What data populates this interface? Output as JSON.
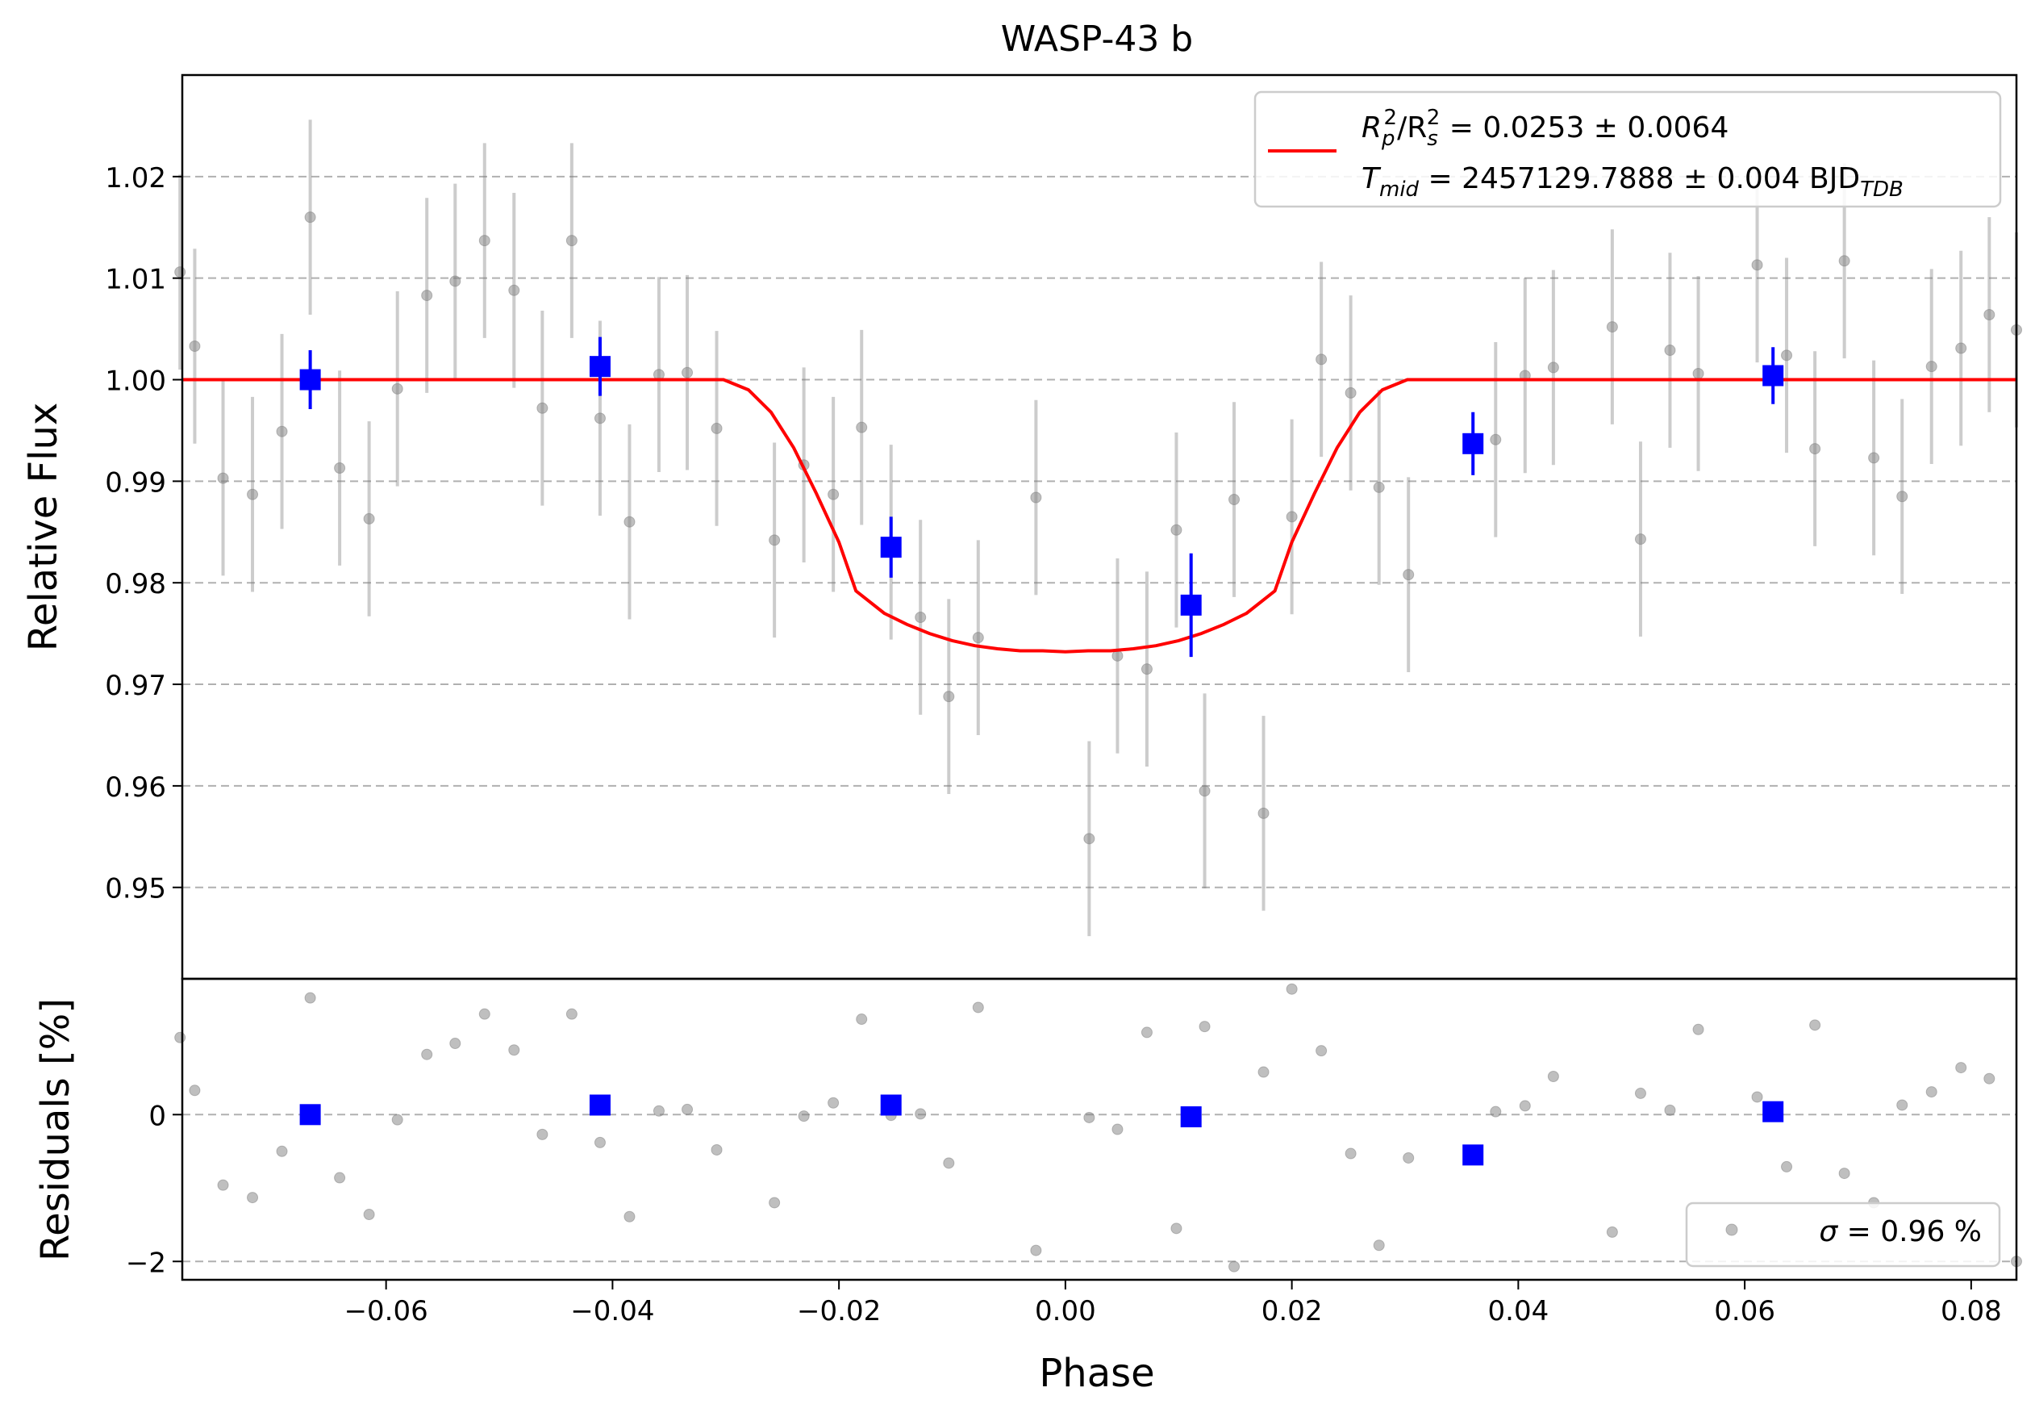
{
  "chart_data": [
    {
      "type": "scatter",
      "panel": "main",
      "title": "WASP-43 b",
      "xlabel": "",
      "ylabel": "Relative Flux",
      "xlim": [
        -0.078,
        0.084
      ],
      "ylim": [
        0.941,
        1.03
      ],
      "grid": "horizontal-dashed",
      "legend_placement": "top-right",
      "yticks": [
        0.95,
        0.96,
        0.97,
        0.98,
        0.99,
        1.0,
        1.01,
        1.02
      ],
      "ytick_labels": [
        "0.95",
        "0.96",
        "0.97",
        "0.98",
        "0.99",
        "1.00",
        "1.01",
        "1.02"
      ],
      "legend": {
        "line1_main": "R",
        "line1_sub1": "p",
        "line1_sup1": "2",
        "line1_slash": "/R",
        "line1_sub2": "s",
        "line1_sup2": "2",
        "line1_rest": " = 0.0253 ± 0.0064",
        "line2_main": "T",
        "line2_sub": "mid",
        "line2_rest": " = 2457129.7888 ± 0.004 BJD",
        "line2_unit_sub": "TDB"
      },
      "series": [
        {
          "name": "data",
          "style": "grey-dots-errorbars",
          "color": "#808080",
          "err": 0.0096,
          "x": [
            -0.0782,
            -0.0769,
            -0.0744,
            -0.0718,
            -0.0692,
            -0.0667,
            -0.0641,
            -0.0615,
            -0.059,
            -0.0564,
            -0.0539,
            -0.0513,
            -0.0487,
            -0.0462,
            -0.0436,
            -0.0411,
            -0.0385,
            -0.0359,
            -0.0334,
            -0.0308,
            -0.0257,
            -0.0231,
            -0.0205,
            -0.018,
            -0.0154,
            -0.0128,
            -0.0103,
            -0.0077,
            -0.0026,
            0.0021,
            0.0046,
            0.0072,
            0.0098,
            0.0123,
            0.0149,
            0.0175,
            0.02,
            0.0226,
            0.0252,
            0.0277,
            0.0303,
            0.038,
            0.0406,
            0.0431,
            0.0483,
            0.0508,
            0.0534,
            0.0559,
            0.0611,
            0.0637,
            0.0662,
            0.0688,
            0.0714,
            0.0739,
            0.0765,
            0.0791,
            0.0816,
            0.084
          ],
          "y": [
            1.0106,
            1.0033,
            0.9903,
            0.9887,
            0.9949,
            1.016,
            0.9913,
            0.9863,
            0.9991,
            1.0083,
            1.0097,
            1.0137,
            1.0088,
            0.9972,
            1.0137,
            0.9962,
            0.986,
            1.0005,
            1.0007,
            0.9952,
            0.9842,
            0.9916,
            0.9887,
            0.9953,
            0.984,
            0.9766,
            0.9688,
            0.9746,
            0.9884,
            0.9548,
            0.9728,
            0.9715,
            0.9852,
            0.9595,
            0.9882,
            0.9573,
            0.9865,
            1.002,
            0.9987,
            0.9894,
            0.9808,
            0.9941,
            1.0004,
            1.0012,
            1.0052,
            0.9843,
            1.0029,
            1.0006,
            1.0113,
            1.0024,
            0.9932,
            1.0117,
            0.9923,
            0.9885,
            1.0013,
            1.0031,
            1.0064,
            1.0049
          ]
        },
        {
          "name": "binned",
          "style": "blue-squares-errorbars",
          "color": "#0000ff",
          "x": [
            -0.0667,
            -0.0411,
            -0.0154,
            0.0111,
            0.036,
            0.0625
          ],
          "y": [
            1.0,
            1.0013,
            0.9835,
            0.9778,
            0.9937,
            1.0004
          ],
          "err": [
            0.0029,
            0.0029,
            0.003,
            0.0051,
            0.0031,
            0.0028
          ]
        },
        {
          "name": "model",
          "style": "red-line",
          "color": "#ff0000",
          "x": [
            -0.078,
            -0.0302,
            -0.028,
            -0.026,
            -0.024,
            -0.022,
            -0.02,
            -0.0185,
            -0.016,
            -0.014,
            -0.012,
            -0.01,
            -0.008,
            -0.006,
            -0.004,
            -0.002,
            0.0,
            0.002,
            0.004,
            0.006,
            0.008,
            0.01,
            0.012,
            0.014,
            0.016,
            0.0185,
            0.02,
            0.022,
            0.024,
            0.026,
            0.028,
            0.0302,
            0.084
          ],
          "y": [
            1.0,
            1.0,
            0.999,
            0.9968,
            0.9933,
            0.9888,
            0.984,
            0.9792,
            0.977,
            0.9759,
            0.975,
            0.9743,
            0.9738,
            0.9735,
            0.9733,
            0.9733,
            0.9732,
            0.9733,
            0.9733,
            0.9735,
            0.9738,
            0.9743,
            0.975,
            0.9759,
            0.977,
            0.9792,
            0.984,
            0.9888,
            0.9933,
            0.9968,
            0.999,
            1.0,
            1.0
          ]
        }
      ]
    },
    {
      "type": "scatter",
      "panel": "residuals",
      "xlabel": "Phase",
      "ylabel": "Residuals [%]",
      "xlim": [
        -0.078,
        0.084
      ],
      "ylim": [
        -2.25,
        1.85
      ],
      "grid": "horizontal-dashed",
      "legend_placement": "bottom-right",
      "xticks": [
        -0.06,
        -0.04,
        -0.02,
        0.0,
        0.02,
        0.04,
        0.06,
        0.08
      ],
      "xtick_labels": [
        "−0.06",
        "−0.04",
        "−0.02",
        "0.00",
        "0.02",
        "0.04",
        "0.06",
        "0.08"
      ],
      "yticks": [
        -2,
        0
      ],
      "ytick_labels": [
        "−2",
        "0"
      ],
      "legend": {
        "sigma_symbol": "σ",
        "sigma_text": " = 0.96 %"
      },
      "series": [
        {
          "name": "residuals",
          "style": "grey-dots",
          "color": "#808080",
          "x": [
            -0.0782,
            -0.0769,
            -0.0744,
            -0.0718,
            -0.0692,
            -0.0667,
            -0.0641,
            -0.0615,
            -0.059,
            -0.0564,
            -0.0539,
            -0.0513,
            -0.0487,
            -0.0462,
            -0.0436,
            -0.0411,
            -0.0385,
            -0.0359,
            -0.0334,
            -0.0308,
            -0.0257,
            -0.0231,
            -0.0205,
            -0.018,
            -0.0154,
            -0.0128,
            -0.0103,
            -0.0077,
            -0.0026,
            0.0021,
            0.0046,
            0.0072,
            0.0098,
            0.0123,
            0.0149,
            0.0175,
            0.02,
            0.0226,
            0.0252,
            0.0277,
            0.0303,
            0.038,
            0.0406,
            0.0431,
            0.0483,
            0.0508,
            0.0534,
            0.0559,
            0.0611,
            0.0637,
            0.0662,
            0.0688,
            0.0714,
            0.0739,
            0.0765,
            0.0791,
            0.0816,
            0.084
          ],
          "y": [
            1.05,
            0.33,
            -0.96,
            -1.13,
            -0.5,
            1.59,
            -0.86,
            -1.36,
            -0.07,
            0.82,
            0.97,
            1.37,
            0.88,
            -0.27,
            1.37,
            -0.38,
            -1.39,
            0.05,
            0.07,
            -0.48,
            -1.2,
            -0.02,
            0.16,
            1.3,
            -0.01,
            0.01,
            -0.66,
            1.46,
            -1.85,
            -0.04,
            -0.2,
            1.12,
            -1.55,
            1.2,
            -2.07,
            0.58,
            1.71,
            0.87,
            -0.53,
            -1.78,
            -0.59,
            0.04,
            0.12,
            0.52,
            -1.6,
            0.29,
            0.06,
            1.16,
            0.24,
            -0.71,
            1.22,
            -0.8,
            -1.2,
            0.13,
            0.31,
            0.64,
            0.49,
            -2.0
          ]
        },
        {
          "name": "binned residuals",
          "style": "blue-squares",
          "color": "#0000ff",
          "x": [
            -0.0667,
            -0.0411,
            -0.0154,
            0.0111,
            0.036,
            0.0625
          ],
          "y": [
            0.0,
            0.13,
            0.13,
            -0.03,
            -0.55,
            0.04
          ]
        }
      ]
    }
  ]
}
